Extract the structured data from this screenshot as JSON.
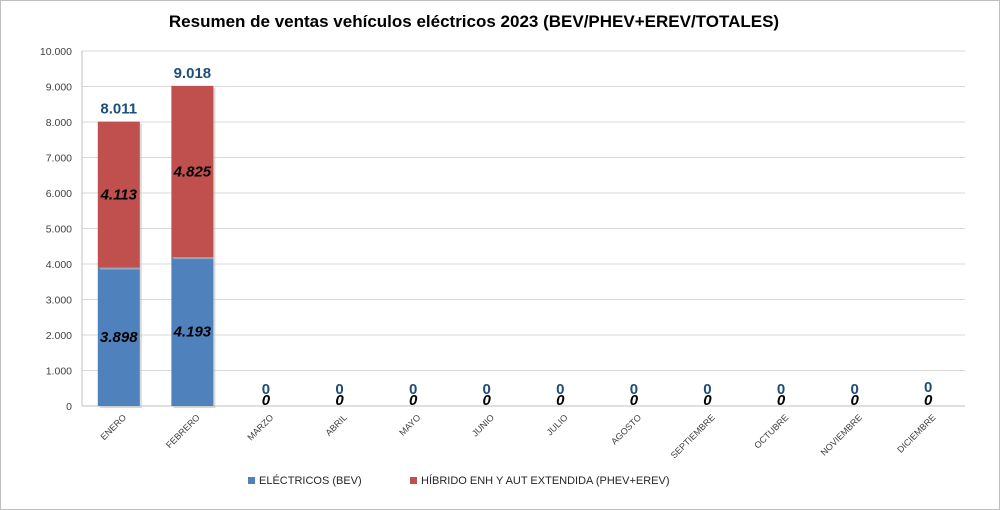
{
  "chart_data": {
    "type": "bar",
    "stacked": true,
    "title": "Resumen de ventas vehículos eléctricos 2023 (BEV/PHEV+EREV/TOTALES)",
    "categories": [
      "ENERO",
      "FEBRERO",
      "MARZO",
      "ABRIL",
      "MAYO",
      "JUNIO",
      "JULIO",
      "AGOSTO",
      "SEPTIEMBRE",
      "OCTUBRE",
      "NOVIEMBRE",
      "DICIEMBRE"
    ],
    "series": [
      {
        "name": "ELÉCTRICOS (BEV)",
        "color": "#4f81bd",
        "values": [
          3898,
          4193,
          0,
          0,
          0,
          0,
          0,
          0,
          0,
          0,
          0,
          0
        ]
      },
      {
        "name": "HÍBRIDO ENH Y AUT EXTENDIDA (PHEV+EREV)",
        "color": "#c0504d",
        "values": [
          4113,
          4825,
          0,
          0,
          0,
          0,
          0,
          0,
          0,
          0,
          0,
          0
        ]
      }
    ],
    "totals": [
      8011,
      9018,
      0,
      0,
      0,
      0,
      0,
      0,
      0,
      0,
      0,
      0
    ],
    "value_labels": {
      "totals": [
        "8.011",
        "9.018",
        "0",
        "0",
        "0",
        "0",
        "0",
        "0",
        "0",
        "0",
        "0",
        "0"
      ],
      "bev": [
        "3.898",
        "4.193",
        "0",
        "0",
        "0",
        "0",
        "0",
        "0",
        "0",
        "0",
        "0",
        "0"
      ],
      "phev": [
        "4.113",
        "4.825",
        "",
        "",
        "",
        "",
        "",
        "",
        "",
        "",
        "",
        ""
      ]
    },
    "yticks": [
      "0",
      "1.000",
      "2.000",
      "3.000",
      "4.000",
      "5.000",
      "6.000",
      "7.000",
      "8.000",
      "9.000",
      "10.000"
    ],
    "ylim": [
      0,
      10000
    ],
    "grid": true,
    "legend_position": "bottom"
  }
}
